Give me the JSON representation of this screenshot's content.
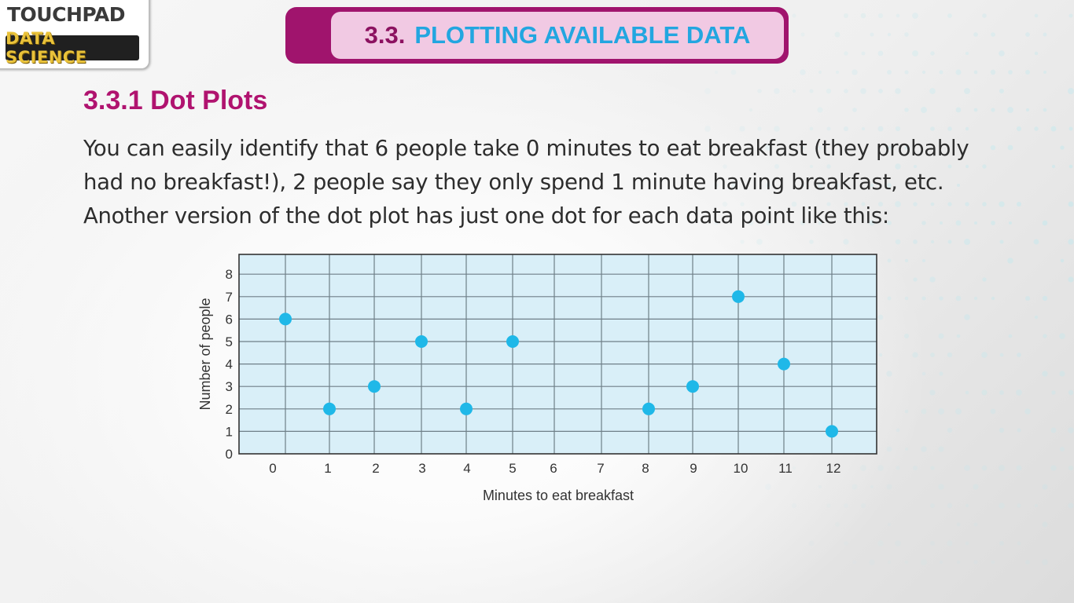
{
  "logo": {
    "top_text": "TOUCHPAD",
    "bottom_text": "DATA SCIENCE"
  },
  "banner": {
    "number": "3.3.",
    "title": "PLOTTING AVAILABLE DATA"
  },
  "section_title": "3.3.1 Dot Plots",
  "body_lines": [
    "You can easily identify that 6 people take 0 minutes to eat breakfast (they probably",
    "had no breakfast!), 2 people say they only spend 1 minute having breakfast, etc.",
    "Another version of the dot plot has just one dot for each data point like this:"
  ],
  "colors": {
    "banner_dark": "#a0146d",
    "banner_light": "#f1c9e3",
    "title_magenta": "#b0136f",
    "banner_text_blue": "#22a6e0",
    "plot_bg": "#d9eff8",
    "dot": "#1fb8e8",
    "logo_gold": "#e9c23a"
  },
  "chart_data": {
    "type": "scatter",
    "title": "",
    "xlabel": "Minutes to eat breakfast",
    "ylabel": "Number of people",
    "x_ticks": [
      0,
      1,
      2,
      3,
      4,
      5,
      6,
      7,
      8,
      9,
      10,
      11,
      12
    ],
    "y_ticks": [
      0,
      1,
      2,
      3,
      4,
      5,
      6,
      7,
      8
    ],
    "ylim": [
      0,
      9
    ],
    "grid": true,
    "points": [
      {
        "x": 0,
        "y": 6
      },
      {
        "x": 1,
        "y": 2
      },
      {
        "x": 2,
        "y": 3
      },
      {
        "x": 3,
        "y": 5
      },
      {
        "x": 4,
        "y": 2
      },
      {
        "x": 5,
        "y": 5
      },
      {
        "x": 8,
        "y": 2
      },
      {
        "x": 9,
        "y": 3
      },
      {
        "x": 10,
        "y": 7
      },
      {
        "x": 11,
        "y": 4
      },
      {
        "x": 12,
        "y": 1
      }
    ]
  }
}
